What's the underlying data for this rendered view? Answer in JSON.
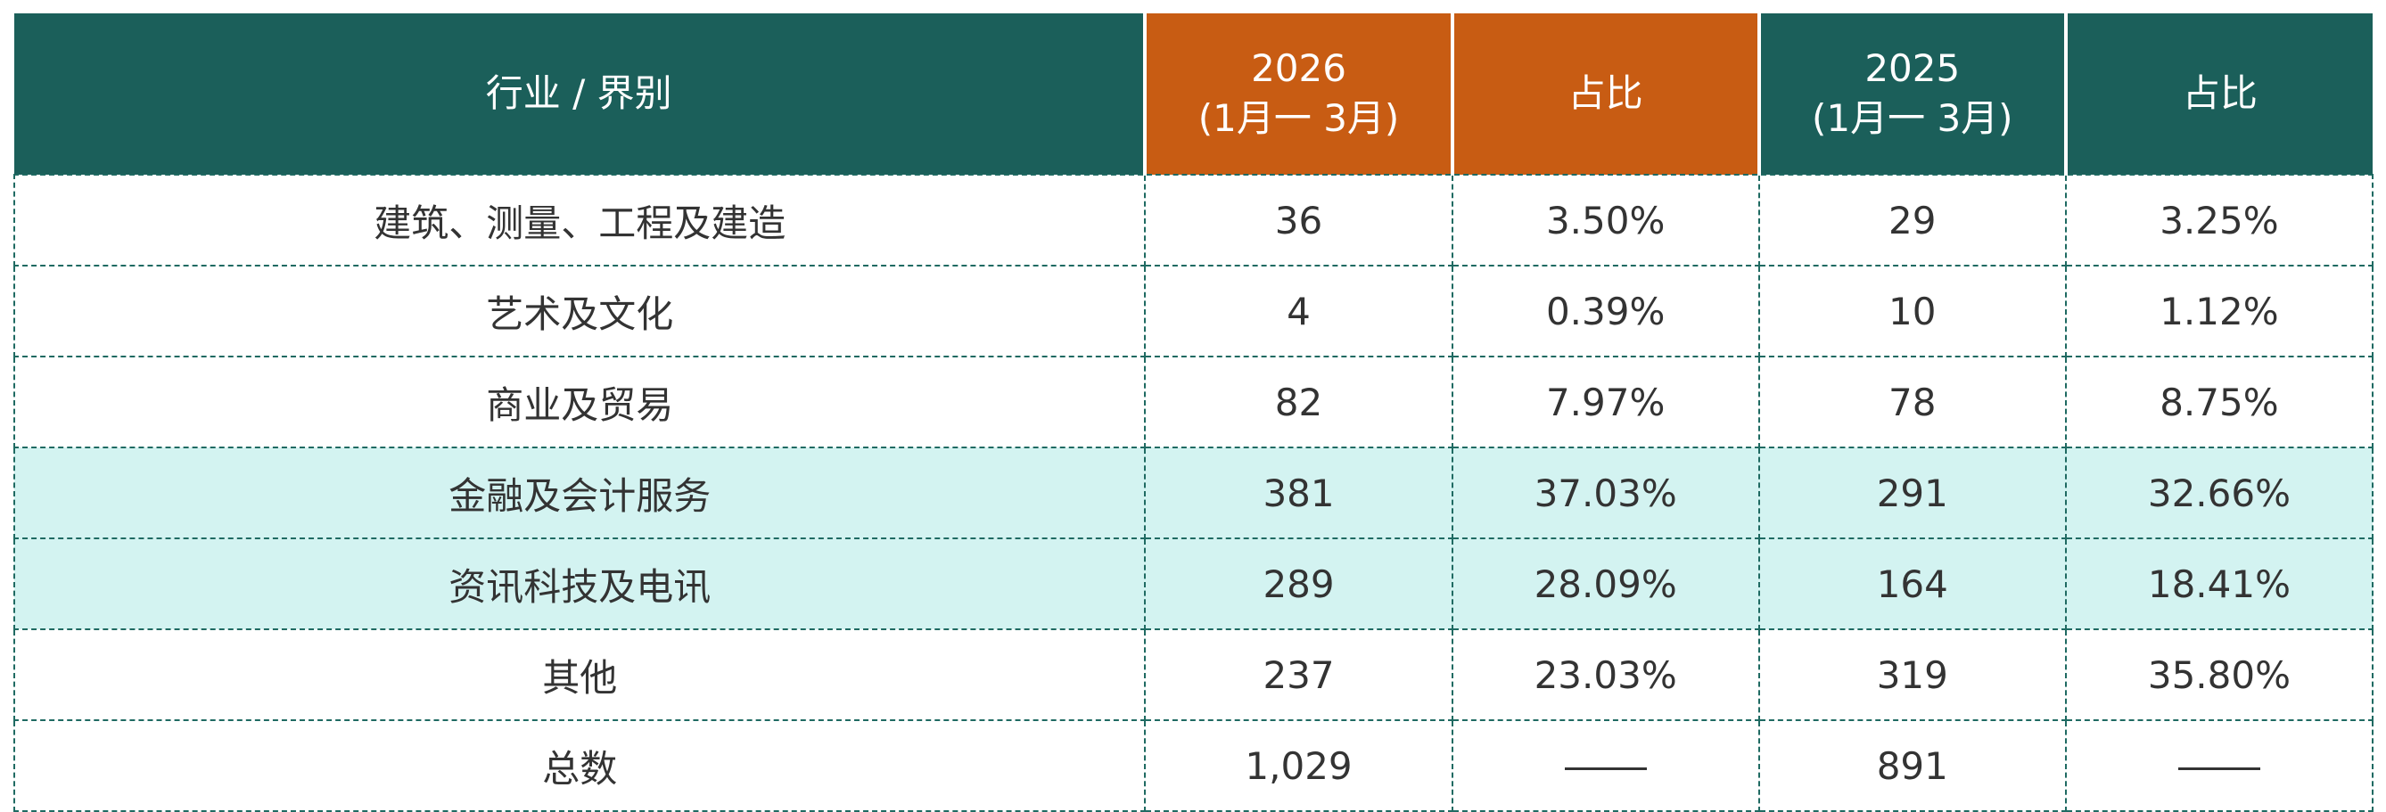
{
  "table": {
    "headers": {
      "industry": "行业 / 界别",
      "year_2026": "2026",
      "period_2026": "(1月一 3月)",
      "share_2026": "占比",
      "year_2025": "2025",
      "period_2025": "(1月一 3月)",
      "share_2025": "占比"
    },
    "rows": [
      {
        "industry": "建筑、测量、工程及建造",
        "v2026": "36",
        "s2026": "3.50%",
        "v2025": "29",
        "s2025": "3.25%",
        "highlight": false
      },
      {
        "industry": "艺术及文化",
        "v2026": "4",
        "s2026": "0.39%",
        "v2025": "10",
        "s2025": "1.12%",
        "highlight": false
      },
      {
        "industry": "商业及贸易",
        "v2026": "82",
        "s2026": "7.97%",
        "v2025": "78",
        "s2025": "8.75%",
        "highlight": false
      },
      {
        "industry": "金融及会计服务",
        "v2026": "381",
        "s2026": "37.03%",
        "v2025": "291",
        "s2025": "32.66%",
        "highlight": true
      },
      {
        "industry": "资讯科技及电讯",
        "v2026": "289",
        "s2026": "28.09%",
        "v2025": "164",
        "s2025": "18.41%",
        "highlight": true
      },
      {
        "industry": "其他",
        "v2026": "237",
        "s2026": "23.03%",
        "v2025": "319",
        "s2025": "35.80%",
        "highlight": false
      }
    ],
    "total": {
      "label": "总数",
      "v2026": "1,029",
      "v2025": "891"
    }
  },
  "colors": {
    "header_teal": "#1b5f5a",
    "header_orange": "#c85c13",
    "highlight_row": "#d3f3f1",
    "border": "#1f6a62"
  }
}
